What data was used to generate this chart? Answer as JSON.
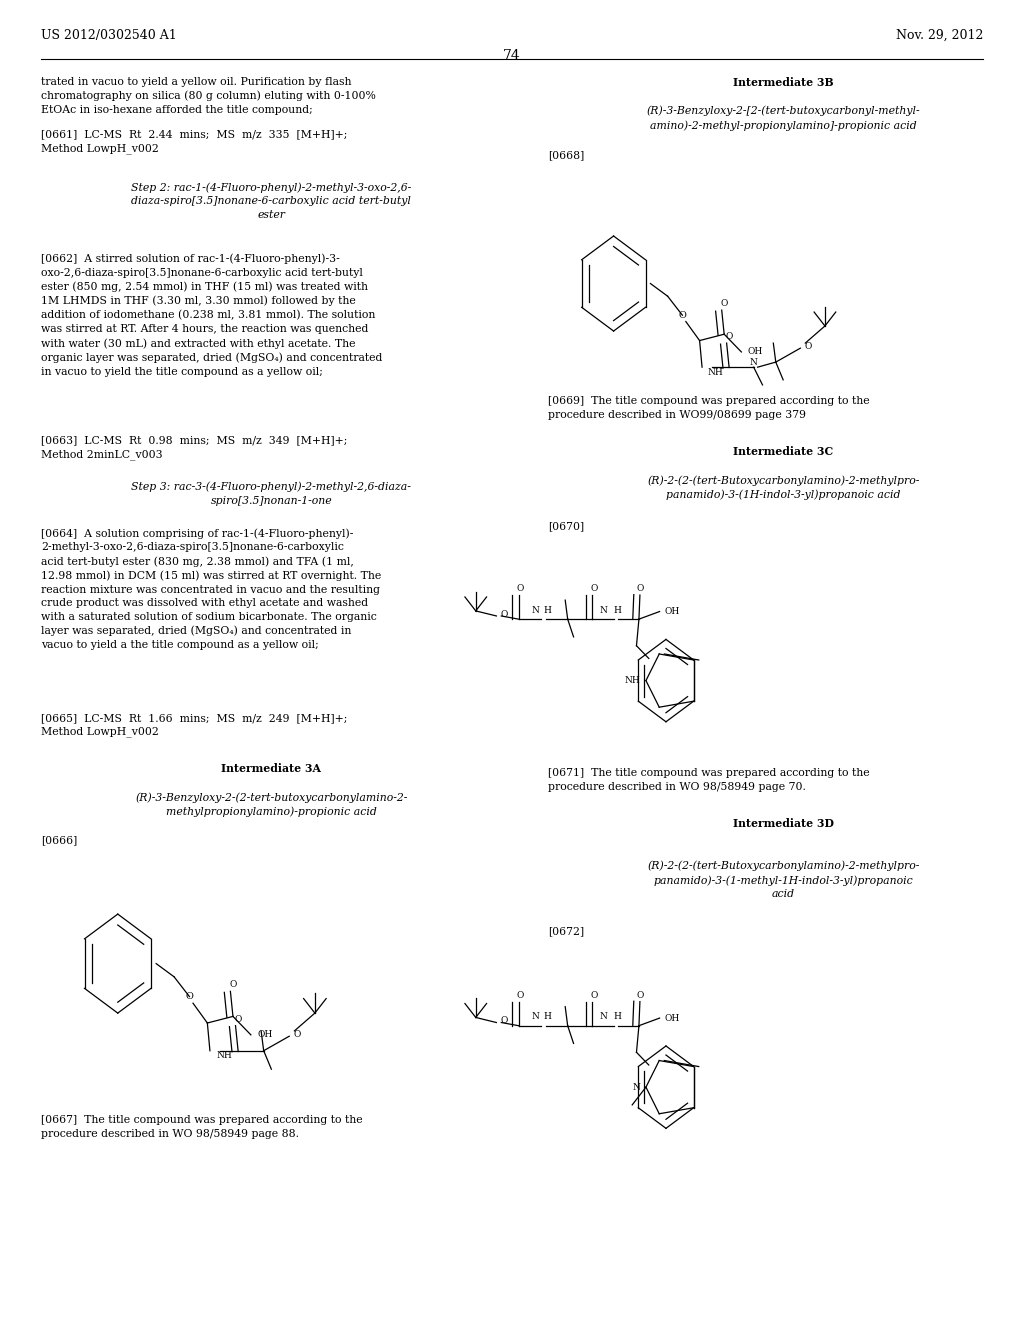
{
  "page_header_left": "US 2012/0302540 A1",
  "page_header_right": "Nov. 29, 2012",
  "page_number": "74",
  "background_color": "#ffffff",
  "text_color": "#000000",
  "font_size_body": 7.8,
  "font_size_header": 9.0,
  "font_size_page_num": 10.0
}
